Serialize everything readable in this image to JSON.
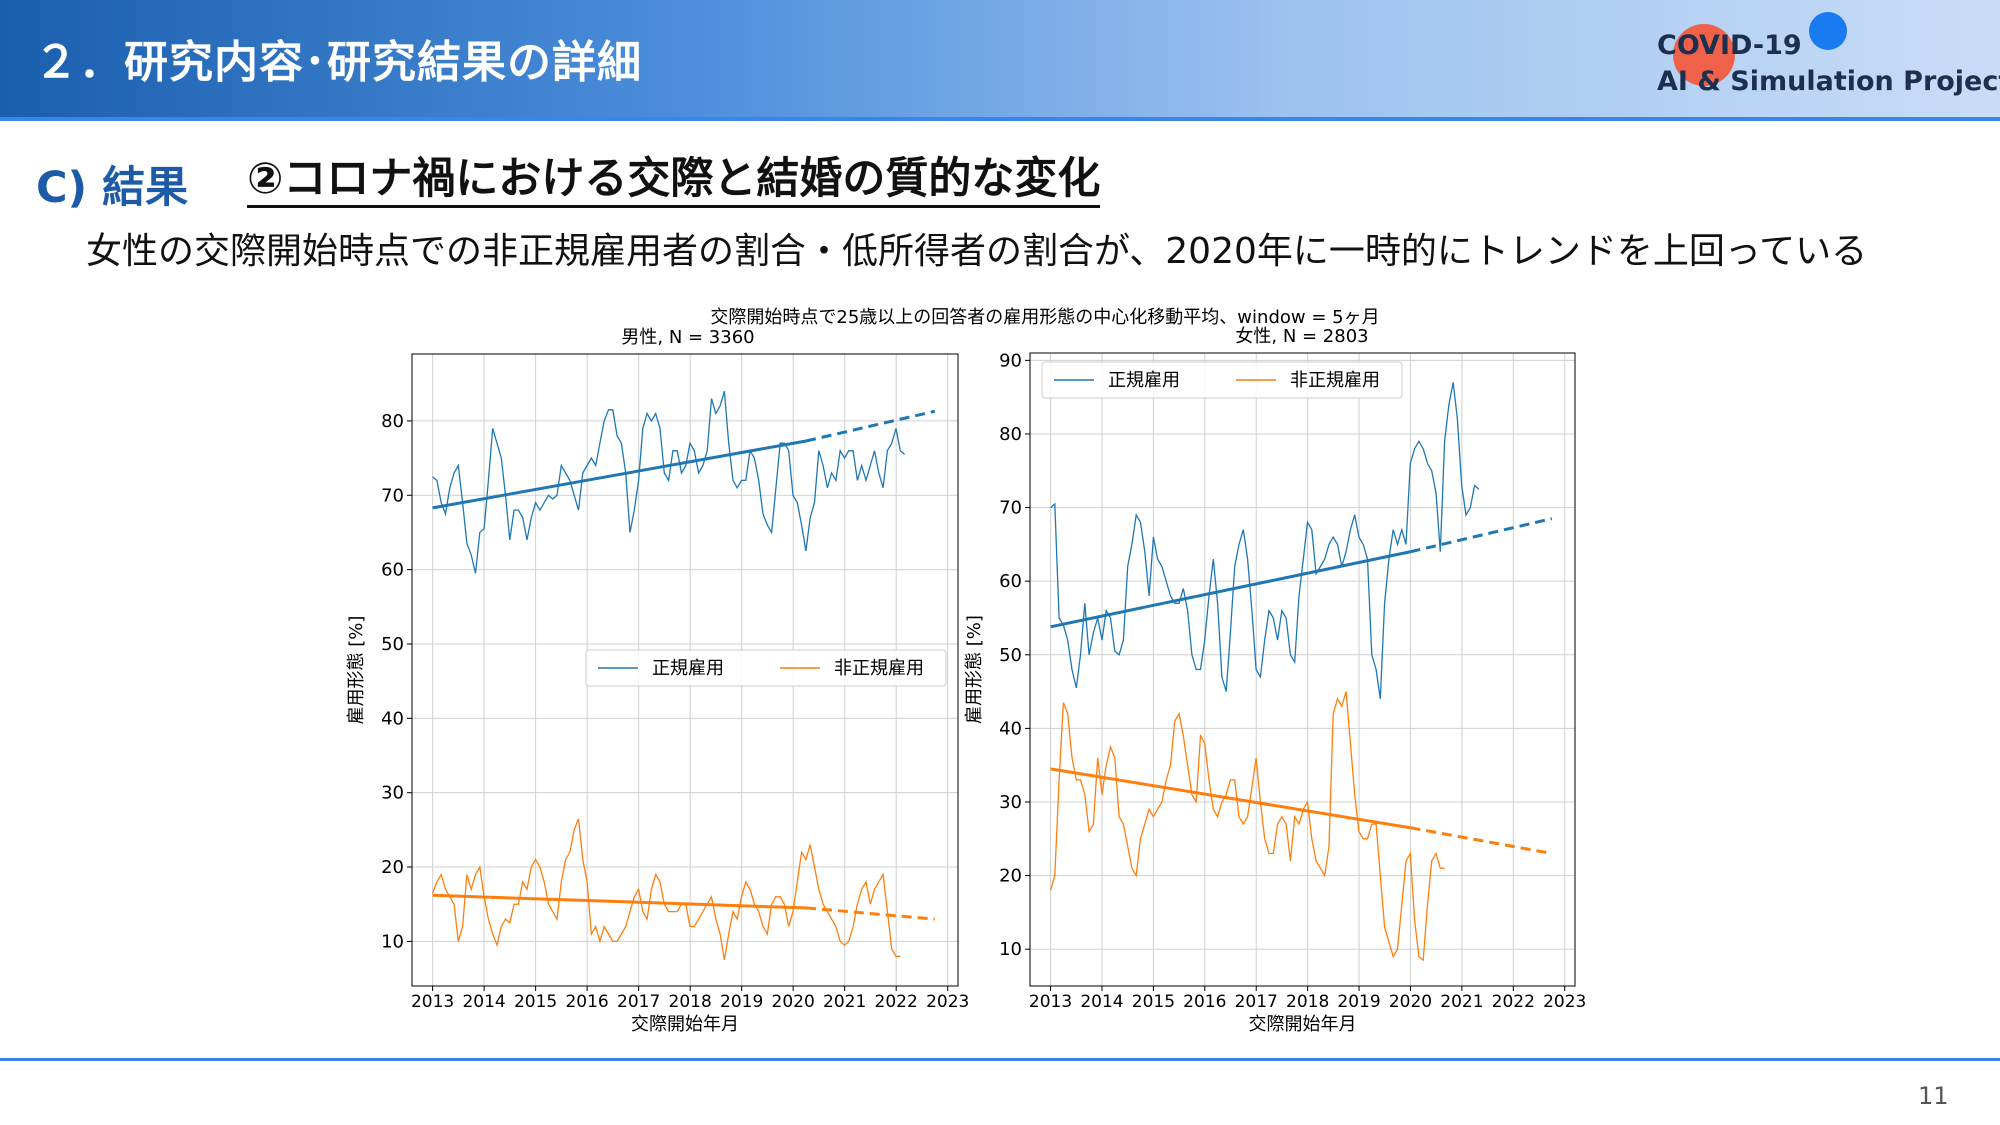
{
  "header": {
    "title": "２．研究内容･研究結果の詳細",
    "logo_line1": "COVID-19",
    "logo_line2": "AI & Simulation Project"
  },
  "section": {
    "letter": "C) 結果",
    "title": "②コロナ禍における交際と結婚の質的な変化",
    "subtitle": "女性の交際開始時点での非正規雇用者の割合・低所得者の割合が、2020年に一時的にトレンドを上回っている"
  },
  "figure_title": "交際開始時点で25歳以上の回答者の雇用形態の中心化移動平均、window = 5ヶ月",
  "page_number": "11",
  "colors": {
    "regular": "#1f77b4",
    "nonregular": "#ff7f0e"
  },
  "chart_data": [
    {
      "type": "line",
      "title": "男性, N = 3360",
      "xlabel": "交際開始年月",
      "ylabel": "雇用形態 [%]",
      "xlim": [
        2012.6,
        2023.2
      ],
      "ylim": [
        4,
        89
      ],
      "xticks": [
        "2013",
        "2014",
        "2015",
        "2016",
        "2017",
        "2018",
        "2019",
        "2020",
        "2021",
        "2022",
        "2023"
      ],
      "yticks": [
        10,
        20,
        30,
        40,
        50,
        60,
        70,
        80
      ],
      "legend": {
        "position": "center-right",
        "entries": [
          "正規雇用",
          "非正規雇用"
        ]
      },
      "grid": true,
      "series": [
        {
          "name": "正規雇用",
          "x_start": 2013.0,
          "x_step": 0.0833,
          "values": [
            72.5,
            72,
            69,
            67.5,
            71,
            73,
            74,
            69,
            63.5,
            62,
            59.5,
            65,
            65.5,
            72,
            79,
            77,
            75,
            70,
            64,
            68,
            68,
            67,
            64,
            67,
            69,
            68,
            69,
            70,
            69.5,
            70,
            74,
            73,
            72,
            70,
            68,
            73,
            74,
            75,
            74,
            77,
            80,
            81.5,
            81.5,
            78,
            77,
            73,
            65,
            68,
            72,
            79,
            81,
            80,
            81,
            79,
            73,
            72,
            76,
            76,
            73,
            74,
            77,
            76,
            73,
            74,
            76,
            83,
            81,
            82,
            84,
            77,
            72,
            71,
            72,
            72,
            76,
            75,
            72,
            67.5,
            66,
            65,
            71,
            77,
            77,
            76,
            70,
            69,
            66,
            62.5,
            67,
            69,
            76,
            74,
            71,
            73,
            72,
            76,
            75,
            76,
            76,
            72,
            74,
            72,
            74,
            76,
            73,
            71,
            76,
            77,
            79,
            76,
            75.5
          ],
          "trend": {
            "x0": 2013.0,
            "y0": 68.3,
            "x1": 2020.25,
            "y1": 77.3,
            "x2": 2022.75,
            "y2": 81.3
          }
        },
        {
          "name": "非正規雇用",
          "x_start": 2013.0,
          "x_step": 0.0833,
          "values": [
            16.5,
            18,
            19,
            17,
            16,
            15,
            10,
            12,
            19,
            17,
            19,
            20,
            16,
            13,
            11,
            9.5,
            12,
            13,
            12.5,
            15,
            15,
            18,
            17,
            20,
            21,
            20,
            18,
            15,
            14,
            13,
            18,
            21,
            22,
            25,
            26.5,
            21,
            18,
            11,
            12,
            10,
            12,
            11,
            10,
            10,
            11,
            12,
            14,
            16,
            17,
            14,
            13,
            17,
            19,
            18,
            15,
            14,
            14,
            14,
            15,
            15,
            12,
            12,
            13,
            14,
            15,
            16,
            13,
            11,
            7.5,
            11,
            14,
            13,
            16,
            18,
            17,
            15,
            14,
            12,
            11,
            15,
            16,
            16,
            15,
            12,
            14,
            18,
            22,
            21,
            23,
            20,
            17,
            15,
            14,
            13,
            12,
            10,
            9.5,
            10,
            12,
            15,
            17,
            18,
            15,
            17,
            18,
            19,
            14,
            9,
            8,
            8
          ],
          "trend": {
            "x0": 2013.0,
            "y0": 16.2,
            "x1": 2020.25,
            "y1": 14.5,
            "x2": 2022.75,
            "y2": 13.0
          }
        }
      ]
    },
    {
      "type": "line",
      "title": "女性, N = 2803",
      "xlabel": "交際開始年月",
      "ylabel": "雇用形態 [%]",
      "xlim": [
        2012.6,
        2023.2
      ],
      "ylim": [
        5,
        91
      ],
      "xticks": [
        "2013",
        "2014",
        "2015",
        "2016",
        "2017",
        "2018",
        "2019",
        "2020",
        "2021",
        "2022",
        "2023"
      ],
      "yticks": [
        10,
        20,
        30,
        40,
        50,
        60,
        70,
        80,
        90
      ],
      "legend": {
        "position": "upper-left",
        "entries": [
          "正規雇用",
          "非正規雇用"
        ]
      },
      "grid": true,
      "series": [
        {
          "name": "正規雇用",
          "x_start": 2013.0,
          "x_step": 0.0833,
          "values": [
            70,
            70.5,
            55,
            54,
            52,
            48,
            45.5,
            50,
            57,
            50,
            53,
            55,
            52,
            56,
            55,
            50.5,
            50,
            52,
            62,
            65,
            69,
            68,
            64,
            58,
            66,
            63,
            62,
            60,
            58,
            57,
            57,
            59,
            56,
            50,
            48,
            48,
            52,
            58,
            63,
            57,
            47,
            45,
            53,
            62,
            65,
            67,
            63,
            56,
            48,
            47,
            52,
            56,
            55,
            52,
            56,
            55,
            50,
            49,
            58,
            63,
            68,
            67,
            61,
            62,
            63,
            65,
            66,
            65,
            62,
            64,
            67,
            69,
            66,
            65,
            63,
            50,
            48,
            44,
            57,
            63,
            67,
            65,
            67,
            65,
            76,
            78,
            79,
            78,
            76,
            75,
            72,
            64,
            79,
            84,
            87,
            82,
            73,
            69,
            70,
            73,
            72.5
          ],
          "trend": {
            "x0": 2013.0,
            "y0": 53.8,
            "x1": 2020.0,
            "y1": 64.0,
            "x2": 2022.75,
            "y2": 68.5
          }
        },
        {
          "name": "非正規雇用",
          "x_start": 2013.0,
          "x_step": 0.0833,
          "values": [
            18,
            20,
            33,
            43.5,
            42,
            36,
            33,
            33,
            31,
            26,
            27,
            36,
            31,
            35,
            37.5,
            36,
            28,
            27,
            24,
            21,
            20,
            25,
            27,
            29,
            28,
            29,
            30,
            33,
            35,
            41,
            42,
            39,
            35,
            31,
            30,
            39,
            38,
            33,
            29,
            28,
            30,
            31,
            33,
            33,
            28,
            27,
            28,
            32,
            36,
            30,
            25,
            23,
            23,
            27,
            28,
            27,
            22,
            28,
            27,
            29,
            30,
            25,
            22,
            21,
            20,
            24,
            42,
            44,
            43,
            45,
            38,
            31,
            26,
            25,
            25,
            27,
            27,
            20,
            13,
            11,
            9,
            10,
            16,
            22,
            23,
            14,
            9,
            8.5,
            16,
            22,
            23,
            21,
            21
          ],
          "trend": {
            "x0": 2013.0,
            "y0": 34.5,
            "x1": 2020.0,
            "y1": 26.5,
            "x2": 2022.75,
            "y2": 23.0
          }
        }
      ]
    }
  ]
}
